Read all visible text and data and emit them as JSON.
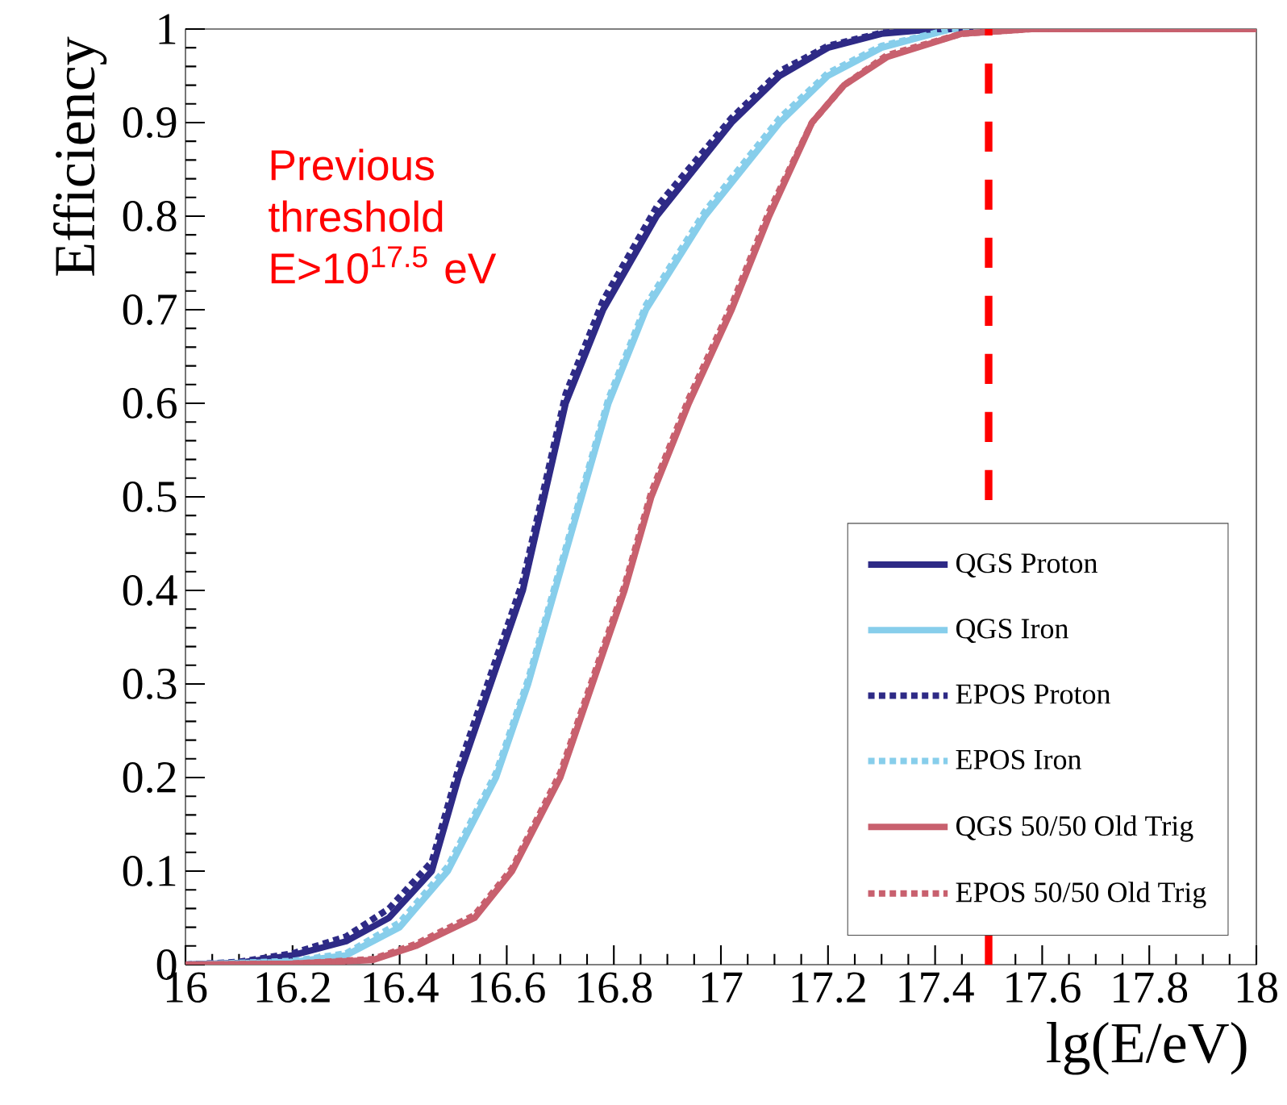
{
  "chart_data": {
    "type": "line",
    "xlabel": "lg(E/eV)",
    "ylabel": "Efficiency",
    "xlim": [
      16,
      18
    ],
    "ylim": [
      0,
      1
    ],
    "xticks": [
      16,
      16.2,
      16.4,
      16.6,
      16.8,
      17,
      17.2,
      17.4,
      17.6,
      17.8,
      18
    ],
    "yticks": [
      0,
      0.1,
      0.2,
      0.3,
      0.4,
      0.5,
      0.6,
      0.7,
      0.8,
      0.9,
      1
    ],
    "grid": false,
    "legend": "bottom right",
    "marker": "none",
    "annotations": [
      "Previous threshold E>10$^{17.5}$ eV"
    ],
    "ref_lines": [
      {
        "axis": "x",
        "value": 17.5,
        "color": "#ff0000",
        "line_style": "dashed"
      }
    ],
    "series": [
      {
        "name": "QGS Proton",
        "color": "#2e2a86",
        "line_style": "solid",
        "x": [
          16,
          16.1,
          16.2,
          16.3,
          16.38,
          16.46,
          16.51,
          16.57,
          16.63,
          16.67,
          16.71,
          16.78,
          16.88,
          17.02,
          17.11,
          17.2,
          17.3,
          17.4,
          17.6,
          18
        ],
        "values": [
          0,
          0.002,
          0.01,
          0.025,
          0.05,
          0.1,
          0.2,
          0.3,
          0.4,
          0.5,
          0.6,
          0.7,
          0.8,
          0.9,
          0.95,
          0.98,
          0.995,
          1,
          1,
          1
        ]
      },
      {
        "name": "QGS Iron",
        "color": "#87ceeb",
        "line_style": "solid",
        "x": [
          16,
          16.2,
          16.3,
          16.4,
          16.49,
          16.58,
          16.64,
          16.69,
          16.74,
          16.79,
          16.86,
          16.97,
          17.11,
          17.2,
          17.3,
          17.43,
          18
        ],
        "values": [
          0,
          0.003,
          0.01,
          0.04,
          0.1,
          0.2,
          0.3,
          0.4,
          0.5,
          0.6,
          0.7,
          0.8,
          0.9,
          0.95,
          0.98,
          1,
          1
        ]
      },
      {
        "name": "EPOS Proton",
        "color": "#2e2a86",
        "line_style": "dotted",
        "x": [
          16,
          16.1,
          16.2,
          16.3,
          16.38,
          16.46,
          16.51,
          16.57,
          16.63,
          16.67,
          16.71,
          16.78,
          16.88,
          17.02,
          17.11,
          17.2,
          17.3,
          17.4,
          17.6,
          18
        ],
        "values": [
          0,
          0.003,
          0.012,
          0.03,
          0.06,
          0.11,
          0.21,
          0.31,
          0.41,
          0.51,
          0.61,
          0.71,
          0.81,
          0.905,
          0.955,
          0.982,
          0.996,
          1,
          1,
          1
        ]
      },
      {
        "name": "EPOS Iron",
        "color": "#87ceeb",
        "line_style": "dotted",
        "x": [
          16,
          16.2,
          16.3,
          16.4,
          16.49,
          16.58,
          16.64,
          16.69,
          16.74,
          16.79,
          16.86,
          16.97,
          17.11,
          17.2,
          17.3,
          17.43,
          18
        ],
        "values": [
          0,
          0.004,
          0.012,
          0.045,
          0.105,
          0.205,
          0.305,
          0.405,
          0.505,
          0.605,
          0.705,
          0.805,
          0.905,
          0.953,
          0.982,
          1,
          1
        ]
      },
      {
        "name": "QGS 50/50 Old Trig",
        "color": "#c8606e",
        "line_style": "solid",
        "x": [
          16,
          16.2,
          16.35,
          16.43,
          16.54,
          16.61,
          16.7,
          16.76,
          16.82,
          16.87,
          16.94,
          17.02,
          17.09,
          17.17,
          17.23,
          17.31,
          17.45,
          17.58,
          18
        ],
        "values": [
          0,
          0.001,
          0.005,
          0.02,
          0.05,
          0.1,
          0.2,
          0.3,
          0.4,
          0.5,
          0.6,
          0.7,
          0.8,
          0.9,
          0.94,
          0.97,
          0.995,
          1,
          1
        ]
      },
      {
        "name": "EPOS 50/50 Old Trig",
        "color": "#c8606e",
        "line_style": "dotted",
        "x": [
          16,
          16.2,
          16.35,
          16.43,
          16.54,
          16.61,
          16.7,
          16.76,
          16.82,
          16.87,
          16.94,
          17.02,
          17.09,
          17.17,
          17.23,
          17.31,
          17.45,
          17.58,
          18
        ],
        "values": [
          0,
          0.001,
          0.006,
          0.022,
          0.053,
          0.103,
          0.205,
          0.305,
          0.405,
          0.505,
          0.605,
          0.705,
          0.805,
          0.9,
          0.94,
          0.972,
          0.995,
          1,
          1
        ]
      }
    ]
  }
}
